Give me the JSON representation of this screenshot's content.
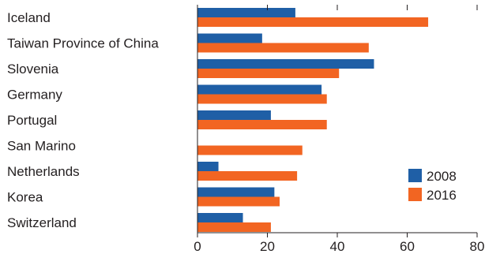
{
  "chart_data": {
    "type": "bar",
    "orientation": "horizontal",
    "categories": [
      "Iceland",
      "Taiwan Province of China",
      "Slovenia",
      "Germany",
      "Portugal",
      "San Marino",
      "Netherlands",
      "Korea",
      "Switzerland"
    ],
    "series": [
      {
        "name": "2008",
        "color": "#1f5fa6",
        "values": [
          28,
          18.5,
          50.5,
          35.5,
          21,
          null,
          6,
          22,
          13
        ]
      },
      {
        "name": "2016",
        "color": "#f26522",
        "values": [
          66,
          49,
          40.5,
          37,
          37,
          30,
          28.5,
          23.5,
          21
        ]
      }
    ],
    "xlim": [
      0,
      80
    ],
    "xticks": [
      "0",
      "20",
      "40",
      "60",
      "80"
    ],
    "grid": false,
    "legend_position": "bottom-right"
  }
}
